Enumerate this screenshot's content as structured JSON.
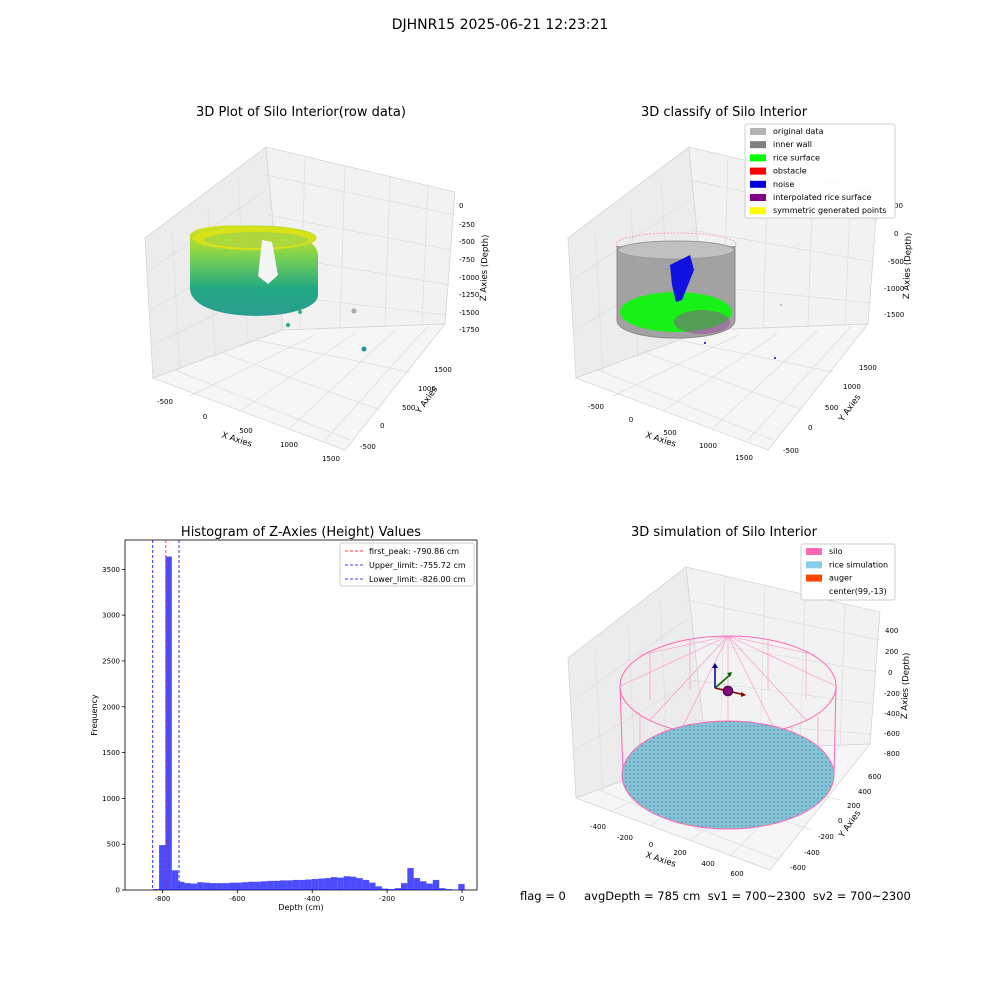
{
  "suptitle": "DJHNR15 2025-06-21 12:23:21",
  "status_text": "flag = 0     avgDepth = 785 cm  sv1 = 700~2300  sv2 = 700~2300",
  "plot1": {
    "title": "3D Plot of Silo Interior(row data)",
    "xlabel": "X Axies",
    "ylabel": "Y Axies",
    "zlabel": "Z Axies (Depth)",
    "xticks": [
      "-500",
      "0",
      "500",
      "1000",
      "1500"
    ],
    "yticks": [
      "-500",
      "0",
      "500",
      "1000",
      "1500"
    ],
    "zticks": [
      "0",
      "-250",
      "-500",
      "-750",
      "-1000",
      "-1250",
      "-1500",
      "-1750"
    ]
  },
  "plot2": {
    "title": "3D classify of Silo Interior",
    "xlabel": "X Axies",
    "ylabel": "Y Axies",
    "zlabel": "Z Axies (Depth)",
    "xticks": [
      "-500",
      "0",
      "500",
      "1000",
      "1500"
    ],
    "yticks": [
      "-500",
      "0",
      "500",
      "1000",
      "1500"
    ],
    "zticks": [
      "0",
      "-500",
      "-1000",
      "-1500"
    ],
    "ztick_top": "00",
    "legend": [
      {
        "label": "original data",
        "color": "#b3b3b3"
      },
      {
        "label": "inner wall",
        "color": "#808080"
      },
      {
        "label": "rice surface",
        "color": "#00ff00"
      },
      {
        "label": "obstacle",
        "color": "#ff0000"
      },
      {
        "label": "noise",
        "color": "#0000dd"
      },
      {
        "label": "interpolated rice surface",
        "color": "#800080"
      },
      {
        "label": "symmetric generated points",
        "color": "#ffff00"
      }
    ]
  },
  "plot3": {
    "title": "3D simulation of Silo Interior",
    "xlabel": "X Axies",
    "ylabel": "Y Axies",
    "zlabel": "Z Axies (Depth)",
    "xticks": [
      "-400",
      "-200",
      "0",
      "200",
      "400",
      "600"
    ],
    "yticks": [
      "-600",
      "-400",
      "-200",
      "0",
      "200",
      "400",
      "600"
    ],
    "zticks": [
      "400",
      "200",
      "0",
      "-200",
      "-400",
      "-600",
      "-800"
    ],
    "legend": [
      {
        "label": "silo",
        "color": "#ff69b4"
      },
      {
        "label": "rice simulation",
        "color": "#87ceeb"
      },
      {
        "label": "auger",
        "color": "#ff4500"
      },
      {
        "label": "center(99,-13)",
        "color": "#ffffff"
      }
    ]
  },
  "chart_data": {
    "type": "bar",
    "title": "Histogram of Z-Axies (Height) Values",
    "xlabel": "Depth (cm)",
    "ylabel": "Frequency",
    "xlim": [
      -900,
      40
    ],
    "ylim": [
      0,
      3820
    ],
    "xticks": [
      -800,
      -600,
      -400,
      -200,
      0
    ],
    "yticks": [
      0,
      500,
      1000,
      1500,
      2000,
      2500,
      3000,
      3500
    ],
    "bar_color": "#0000ff",
    "bin_width": 17,
    "bins": [
      {
        "x": -826,
        "value": 10
      },
      {
        "x": -809,
        "value": 490
      },
      {
        "x": -792,
        "value": 3640
      },
      {
        "x": -775,
        "value": 215
      },
      {
        "x": -758,
        "value": 90
      },
      {
        "x": -741,
        "value": 75
      },
      {
        "x": -724,
        "value": 70
      },
      {
        "x": -707,
        "value": 85
      },
      {
        "x": -690,
        "value": 80
      },
      {
        "x": -673,
        "value": 75
      },
      {
        "x": -656,
        "value": 75
      },
      {
        "x": -639,
        "value": 75
      },
      {
        "x": -622,
        "value": 80
      },
      {
        "x": -605,
        "value": 80
      },
      {
        "x": -588,
        "value": 85
      },
      {
        "x": -571,
        "value": 90
      },
      {
        "x": -554,
        "value": 90
      },
      {
        "x": -537,
        "value": 95
      },
      {
        "x": -520,
        "value": 100
      },
      {
        "x": -503,
        "value": 100
      },
      {
        "x": -486,
        "value": 105
      },
      {
        "x": -469,
        "value": 105
      },
      {
        "x": -452,
        "value": 110
      },
      {
        "x": -435,
        "value": 110
      },
      {
        "x": -418,
        "value": 115
      },
      {
        "x": -401,
        "value": 120
      },
      {
        "x": -384,
        "value": 125
      },
      {
        "x": -367,
        "value": 130
      },
      {
        "x": -350,
        "value": 140
      },
      {
        "x": -333,
        "value": 135
      },
      {
        "x": -316,
        "value": 150
      },
      {
        "x": -299,
        "value": 145
      },
      {
        "x": -282,
        "value": 130
      },
      {
        "x": -265,
        "value": 110
      },
      {
        "x": -248,
        "value": 80
      },
      {
        "x": -231,
        "value": 40
      },
      {
        "x": -214,
        "value": 15
      },
      {
        "x": -197,
        "value": 10
      },
      {
        "x": -180,
        "value": 20
      },
      {
        "x": -163,
        "value": 75
      },
      {
        "x": -146,
        "value": 240
      },
      {
        "x": -129,
        "value": 130
      },
      {
        "x": -112,
        "value": 95
      },
      {
        "x": -95,
        "value": 70
      },
      {
        "x": -78,
        "value": 110
      },
      {
        "x": -61,
        "value": 20
      },
      {
        "x": -44,
        "value": 10
      },
      {
        "x": -27,
        "value": 5
      },
      {
        "x": -10,
        "value": 65
      }
    ],
    "vlines": [
      {
        "label": "first_peak: -790.86 cm",
        "x": -790.86,
        "color": "#ff0000"
      },
      {
        "label": "Upper_limit: -755.72 cm",
        "x": -755.72,
        "color": "#0000ff"
      },
      {
        "label": "Lower_limit: -826.00 cm",
        "x": -826.0,
        "color": "#0000ff"
      }
    ],
    "legend_position": "top-right"
  }
}
